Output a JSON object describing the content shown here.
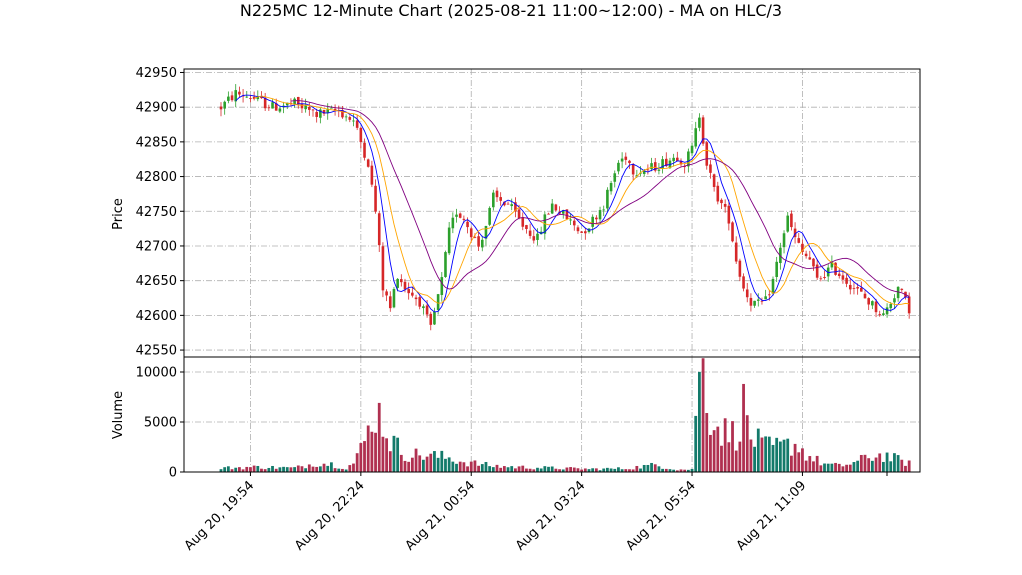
{
  "chart_data": {
    "type": "candlestick",
    "title": "N225MC 12-Minute Chart (2025-08-21 11:00~12:00) - MA on HLC/3",
    "ylabel_price": "Price",
    "ylabel_volume": "Volume",
    "price_ylim": [
      42540,
      42955
    ],
    "price_ticks": [
      42550,
      42600,
      42650,
      42700,
      42750,
      42800,
      42850,
      42900,
      42950
    ],
    "volume_ylim": [
      0,
      11500
    ],
    "volume_ticks": [
      0,
      5000,
      10000
    ],
    "x_tick_labels": [
      "Aug 20, 19:54",
      "Aug 20, 22:24",
      "Aug 21, 00:54",
      "Aug 21, 03:24",
      "Aug 21, 05:54",
      "Aug 21, 11:09"
    ],
    "x_tick_bar_index": [
      8,
      38,
      68,
      98,
      128,
      158
    ],
    "bar_count": 188,
    "up_color": "#2ca02c",
    "down_color": "#d62728",
    "volume_up_color": "#137a6a",
    "volume_down_color": "#b03050",
    "ma_colors": [
      "#0000ff",
      "#ffa500",
      "#800080"
    ],
    "grid": true,
    "price_path": [
      [
        0,
        42900
      ],
      [
        4,
        42920
      ],
      [
        8,
        42915
      ],
      [
        14,
        42900
      ],
      [
        20,
        42905
      ],
      [
        26,
        42890
      ],
      [
        32,
        42895
      ],
      [
        36,
        42880
      ],
      [
        40,
        42820
      ],
      [
        42,
        42750
      ],
      [
        44,
        42640
      ],
      [
        46,
        42610
      ],
      [
        48,
        42660
      ],
      [
        50,
        42640
      ],
      [
        54,
        42620
      ],
      [
        57,
        42580
      ],
      [
        60,
        42650
      ],
      [
        62,
        42720
      ],
      [
        64,
        42750
      ],
      [
        66,
        42740
      ],
      [
        68,
        42720
      ],
      [
        70,
        42700
      ],
      [
        72,
        42730
      ],
      [
        74,
        42770
      ],
      [
        78,
        42760
      ],
      [
        82,
        42730
      ],
      [
        86,
        42710
      ],
      [
        88,
        42740
      ],
      [
        90,
        42760
      ],
      [
        94,
        42740
      ],
      [
        98,
        42720
      ],
      [
        100,
        42730
      ],
      [
        104,
        42760
      ],
      [
        106,
        42790
      ],
      [
        108,
        42820
      ],
      [
        110,
        42830
      ],
      [
        112,
        42810
      ],
      [
        116,
        42810
      ],
      [
        120,
        42820
      ],
      [
        124,
        42830
      ],
      [
        126,
        42820
      ],
      [
        128,
        42840
      ],
      [
        130,
        42890
      ],
      [
        132,
        42820
      ],
      [
        134,
        42780
      ],
      [
        136,
        42760
      ],
      [
        138,
        42740
      ],
      [
        140,
        42680
      ],
      [
        142,
        42640
      ],
      [
        144,
        42620
      ],
      [
        146,
        42615
      ],
      [
        148,
        42620
      ],
      [
        150,
        42650
      ],
      [
        152,
        42700
      ],
      [
        154,
        42740
      ],
      [
        156,
        42710
      ],
      [
        158,
        42690
      ],
      [
        160,
        42680
      ],
      [
        162,
        42650
      ],
      [
        164,
        42660
      ],
      [
        166,
        42670
      ],
      [
        168,
        42660
      ],
      [
        170,
        42650
      ],
      [
        172,
        42640
      ],
      [
        174,
        42630
      ],
      [
        176,
        42620
      ],
      [
        178,
        42610
      ],
      [
        180,
        42600
      ],
      [
        182,
        42620
      ],
      [
        184,
        42640
      ],
      [
        186,
        42620
      ],
      [
        187,
        42610
      ]
    ],
    "volume_path": [
      [
        0,
        400
      ],
      [
        10,
        500
      ],
      [
        20,
        400
      ],
      [
        26,
        900
      ],
      [
        30,
        800
      ],
      [
        34,
        400
      ],
      [
        36,
        900
      ],
      [
        38,
        2200
      ],
      [
        40,
        4000
      ],
      [
        42,
        6400
      ],
      [
        44,
        5000
      ],
      [
        46,
        3200
      ],
      [
        50,
        1800
      ],
      [
        54,
        1700
      ],
      [
        58,
        1600
      ],
      [
        62,
        1400
      ],
      [
        66,
        1000
      ],
      [
        70,
        800
      ],
      [
        74,
        600
      ],
      [
        80,
        500
      ],
      [
        90,
        400
      ],
      [
        100,
        300
      ],
      [
        110,
        350
      ],
      [
        118,
        700
      ],
      [
        124,
        250
      ],
      [
        128,
        250
      ],
      [
        129,
        7000
      ],
      [
        131,
        10500
      ],
      [
        133,
        6000
      ],
      [
        135,
        4500
      ],
      [
        137,
        4000
      ],
      [
        140,
        3800
      ],
      [
        142,
        6500
      ],
      [
        144,
        3500
      ],
      [
        148,
        2500
      ],
      [
        152,
        2500
      ],
      [
        156,
        2800
      ],
      [
        160,
        1500
      ],
      [
        164,
        800
      ],
      [
        168,
        600
      ],
      [
        172,
        900
      ],
      [
        176,
        1500
      ],
      [
        180,
        1700
      ],
      [
        184,
        1200
      ],
      [
        187,
        900
      ]
    ]
  }
}
